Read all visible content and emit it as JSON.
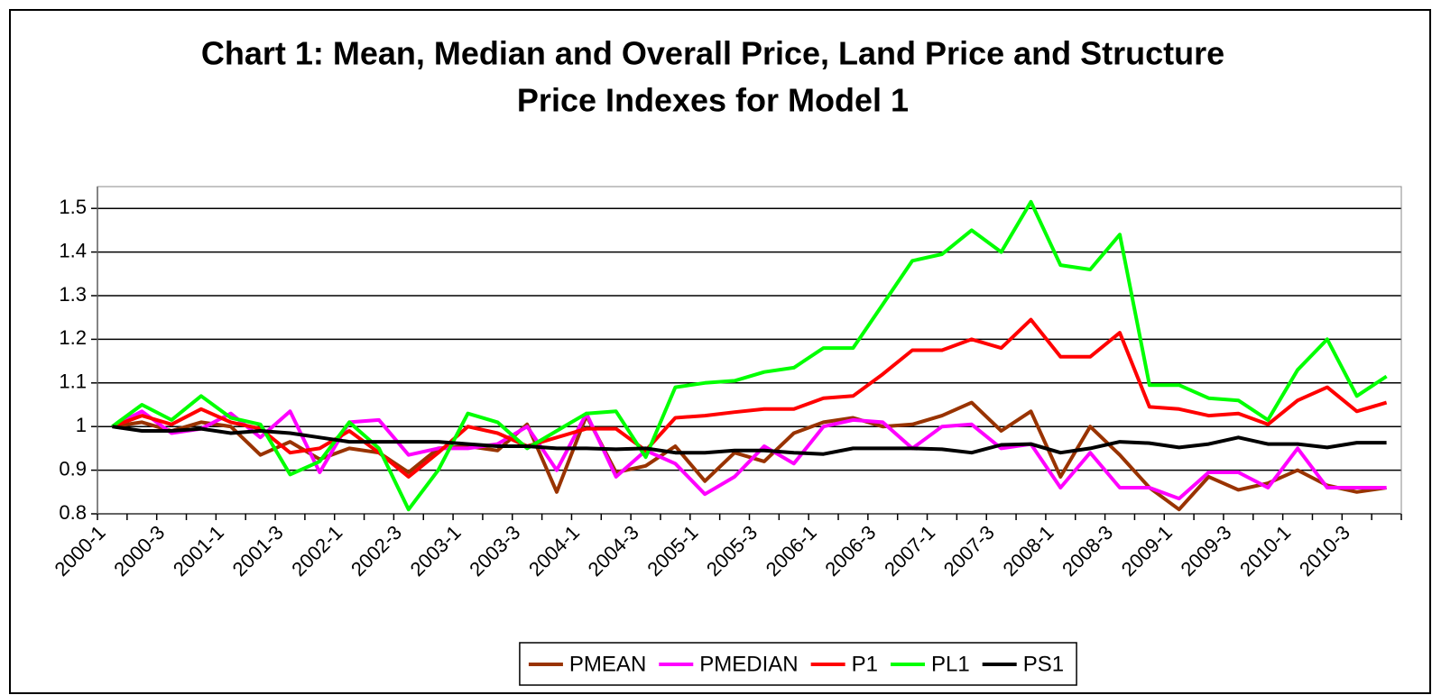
{
  "chart_data": {
    "type": "line",
    "title": "Chart 1: Mean, Median and Overall Price, Land Price and Structure",
    "subtitle": "Price Indexes for Model 1",
    "categories": [
      "2000-1",
      null,
      "2000-3",
      null,
      "2001-1",
      null,
      "2001-3",
      null,
      "2002-1",
      null,
      "2002-3",
      null,
      "2003-1",
      null,
      "2003-3",
      null,
      "2004-1",
      null,
      "2004-3",
      null,
      "2005-1",
      null,
      "2005-3",
      null,
      "2006-1",
      null,
      "2006-3",
      null,
      "2007-1",
      null,
      "2007-3",
      null,
      "2008-1",
      null,
      "2008-3",
      null,
      "2009-1",
      null,
      "2009-3",
      null,
      "2010-1",
      null,
      "2010-3",
      null
    ],
    "series": [
      {
        "name": "PMEAN",
        "color": "#993300",
        "values": [
          1.0,
          1.01,
          0.99,
          1.01,
          1.0,
          0.935,
          0.965,
          0.925,
          0.95,
          0.94,
          0.895,
          0.95,
          0.955,
          0.945,
          1.005,
          0.85,
          1.025,
          0.895,
          0.91,
          0.955,
          0.875,
          0.94,
          0.92,
          0.985,
          1.01,
          1.02,
          1.0,
          1.005,
          1.025,
          1.055,
          0.99,
          1.035,
          0.885,
          1.0,
          0.935,
          0.86,
          0.81,
          0.885,
          0.855,
          0.87,
          0.9,
          0.865,
          0.85,
          0.86
        ]
      },
      {
        "name": "PMEDIAN",
        "color": "#ff00ff",
        "values": [
          1.0,
          1.035,
          0.985,
          0.995,
          1.03,
          0.975,
          1.035,
          0.895,
          1.01,
          1.015,
          0.935,
          0.95,
          0.95,
          0.96,
          1.0,
          0.9,
          1.03,
          0.885,
          0.945,
          0.915,
          0.845,
          0.885,
          0.955,
          0.915,
          1.0,
          1.015,
          1.01,
          0.95,
          1.0,
          1.005,
          0.95,
          0.96,
          0.86,
          0.94,
          0.86,
          0.86,
          0.835,
          0.895,
          0.895,
          0.86,
          0.95,
          0.86,
          0.86,
          0.86
        ]
      },
      {
        "name": "P1",
        "color": "#ff0000",
        "values": [
          1.0,
          1.025,
          1.005,
          1.04,
          1.01,
          0.995,
          0.94,
          0.95,
          0.99,
          0.94,
          0.885,
          0.94,
          1.0,
          0.985,
          0.955,
          0.975,
          0.995,
          0.995,
          0.945,
          1.02,
          1.025,
          1.033,
          1.04,
          1.04,
          1.065,
          1.07,
          1.12,
          1.175,
          1.175,
          1.2,
          1.18,
          1.245,
          1.16,
          1.16,
          1.215,
          1.045,
          1.04,
          1.025,
          1.03,
          1.005,
          1.06,
          1.09,
          1.035,
          1.055
        ]
      },
      {
        "name": "PL1",
        "color": "#00ff00",
        "values": [
          1.0,
          1.05,
          1.015,
          1.07,
          1.02,
          1.005,
          0.89,
          0.92,
          1.01,
          0.95,
          0.81,
          0.9,
          1.03,
          1.01,
          0.95,
          0.99,
          1.03,
          1.035,
          0.93,
          1.09,
          1.1,
          1.105,
          1.125,
          1.135,
          1.18,
          1.18,
          1.28,
          1.38,
          1.395,
          1.45,
          1.4,
          1.515,
          1.37,
          1.36,
          1.44,
          1.095,
          1.095,
          1.065,
          1.06,
          1.015,
          1.13,
          1.2,
          1.07,
          1.115
        ]
      },
      {
        "name": "PS1",
        "color": "#000000",
        "values": [
          1.0,
          0.99,
          0.99,
          0.995,
          0.985,
          0.99,
          0.985,
          0.975,
          0.965,
          0.965,
          0.965,
          0.965,
          0.96,
          0.955,
          0.955,
          0.95,
          0.95,
          0.948,
          0.95,
          0.94,
          0.94,
          0.945,
          0.945,
          0.94,
          0.937,
          0.95,
          0.95,
          0.95,
          0.948,
          0.94,
          0.958,
          0.96,
          0.94,
          0.95,
          0.965,
          0.962,
          0.952,
          0.96,
          0.975,
          0.96,
          0.96,
          0.952,
          0.963,
          0.963
        ]
      }
    ],
    "ylim": [
      0.8,
      1.55
    ],
    "yticks": [
      0.8,
      0.9,
      1,
      1.1,
      1.2,
      1.3,
      1.4,
      1.5
    ],
    "grid": true,
    "legend": "bottom"
  }
}
